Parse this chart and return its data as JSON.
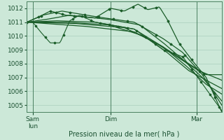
{
  "background_color": "#cce8d8",
  "grid_color": "#aacfbe",
  "line_color": "#1a5c28",
  "xlabel": "Pression niveau de la mer( hPa )",
  "xlabel_fontsize": 7,
  "tick_label_fontsize": 6.5,
  "ylim": [
    1004.5,
    1012.5
  ],
  "yticks": [
    1005,
    1006,
    1007,
    1008,
    1009,
    1010,
    1011,
    1012
  ],
  "x_tick_labels": [
    "Sam\nlun",
    "Dim",
    "Mar"
  ],
  "x_tick_positions": [
    0.03,
    0.43,
    0.87
  ]
}
